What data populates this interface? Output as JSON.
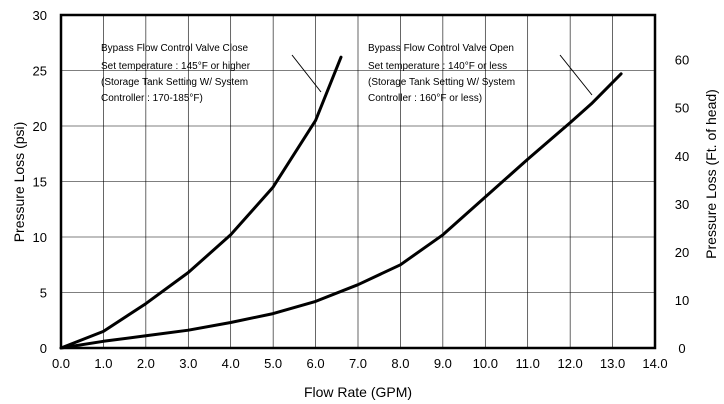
{
  "chart_data": {
    "type": "line",
    "xlabel": "Flow Rate (GPM)",
    "ylabel": "Pressure Loss (psi)",
    "y2label": "Pressure Loss (Ft. of head)",
    "xlim": [
      0,
      14
    ],
    "ylim": [
      0,
      30
    ],
    "y2lim": [
      0,
      69.3
    ],
    "grid": true,
    "x_ticks": [
      "0.0",
      "1.0",
      "2.0",
      "3.0",
      "4.0",
      "5.0",
      "6.0",
      "7.0",
      "8.0",
      "9.0",
      "10.0",
      "11.0",
      "12.0",
      "13.0",
      "14.0"
    ],
    "y_ticks": [
      "0",
      "5",
      "10",
      "15",
      "20",
      "25",
      "30"
    ],
    "y2_ticks": [
      "0",
      "10",
      "20",
      "30",
      "40",
      "50",
      "60"
    ],
    "series": [
      {
        "name": "Bypass Flow Control Valve Close",
        "x": [
          0,
          1.0,
          2.0,
          3.0,
          4.0,
          5.0,
          6.0,
          6.6
        ],
        "y": [
          0,
          1.5,
          4.0,
          6.8,
          10.2,
          14.5,
          20.5,
          26.2
        ]
      },
      {
        "name": "Bypass Flow Control Valve Open",
        "x": [
          0,
          1.0,
          2.0,
          3.0,
          4.0,
          5.0,
          6.0,
          7.0,
          8.0,
          9.0,
          10.0,
          11.0,
          12.0,
          12.5,
          13.2
        ],
        "y": [
          0,
          0.6,
          1.1,
          1.6,
          2.3,
          3.1,
          4.2,
          5.7,
          7.5,
          10.2,
          13.6,
          17.0,
          20.3,
          22.0,
          24.7
        ]
      }
    ],
    "annotations": [
      {
        "lines": [
          "Bypass Flow Control Valve Close",
          "Set temperature : 145°F or higher",
          "(Storage Tank Setting W/ System",
          "Controller : 170-185°F)"
        ]
      },
      {
        "lines": [
          "Bypass Flow Control Valve Open",
          "Set temperature : 140°F or less",
          "(Storage Tank Setting W/ System",
          "Controller : 160°F or less)"
        ]
      }
    ]
  }
}
